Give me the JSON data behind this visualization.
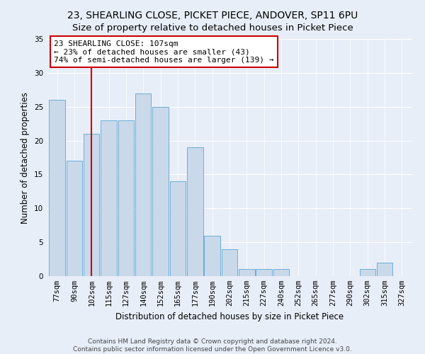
{
  "title": "23, SHEARLING CLOSE, PICKET PIECE, ANDOVER, SP11 6PU",
  "subtitle": "Size of property relative to detached houses in Picket Piece",
  "xlabel": "Distribution of detached houses by size in Picket Piece",
  "ylabel": "Number of detached properties",
  "categories": [
    "77sqm",
    "90sqm",
    "102sqm",
    "115sqm",
    "127sqm",
    "140sqm",
    "152sqm",
    "165sqm",
    "177sqm",
    "190sqm",
    "202sqm",
    "215sqm",
    "227sqm",
    "240sqm",
    "252sqm",
    "265sqm",
    "277sqm",
    "290sqm",
    "302sqm",
    "315sqm",
    "327sqm"
  ],
  "values": [
    26,
    17,
    21,
    23,
    23,
    27,
    25,
    14,
    19,
    6,
    4,
    1,
    1,
    1,
    0,
    0,
    0,
    0,
    1,
    2,
    0
  ],
  "bar_color": "#c9d9ea",
  "bar_edge_color": "#6aaed6",
  "vline_x_index": 2,
  "vline_color": "#cc0000",
  "annotation_text": "23 SHEARLING CLOSE: 107sqm\n← 23% of detached houses are smaller (43)\n74% of semi-detached houses are larger (139) →",
  "annotation_box_color": "#ffffff",
  "annotation_box_edge": "#cc0000",
  "ylim": [
    0,
    35
  ],
  "yticks": [
    0,
    5,
    10,
    15,
    20,
    25,
    30,
    35
  ],
  "bg_color": "#e8eef8",
  "plot_bg_color": "#e8eef8",
  "grid_color": "#ffffff",
  "footer": "Contains HM Land Registry data © Crown copyright and database right 2024.\nContains public sector information licensed under the Open Government Licence v3.0.",
  "title_fontsize": 10,
  "xlabel_fontsize": 8.5,
  "ylabel_fontsize": 8.5,
  "tick_fontsize": 7.5,
  "annotation_fontsize": 8,
  "footer_fontsize": 6.5
}
